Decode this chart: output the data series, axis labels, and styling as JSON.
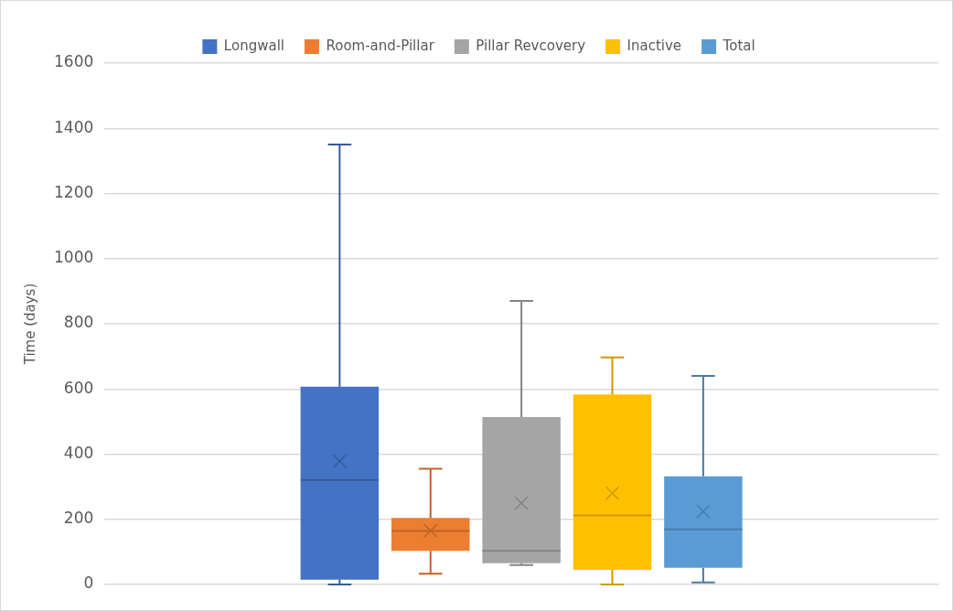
{
  "chart_data": {
    "type": "box",
    "categories": [
      null
    ],
    "ylabel": "Time (days)",
    "ylim": [
      0,
      1600
    ],
    "yticks": [
      0,
      200,
      400,
      600,
      800,
      1000,
      1200,
      1400,
      1600
    ],
    "grid": "y",
    "legend": "top",
    "tick_labels": "y",
    "marker": "cross",
    "series": [
      {
        "name": "Longwall",
        "color": "#4472c4",
        "boxes": [
          {
            "low": 0,
            "q1": 15,
            "median": 321,
            "q3": 607,
            "high": 1350,
            "mean": 378
          }
        ]
      },
      {
        "name": "Room-and-Pillar",
        "color": "#ed7d31",
        "boxes": [
          {
            "low": 33,
            "q1": 103,
            "median": 164,
            "q3": 204,
            "high": 355,
            "mean": 165
          }
        ]
      },
      {
        "name": "Pillar Revcovery",
        "color": "#a5a5a5",
        "boxes": [
          {
            "low": 60,
            "q1": 65,
            "median": 103,
            "q3": 514,
            "high": 870,
            "mean": 250
          }
        ]
      },
      {
        "name": "Inactive",
        "color": "#ffc000",
        "boxes": [
          {
            "low": 0,
            "q1": 45,
            "median": 212,
            "q3": 583,
            "high": 697,
            "mean": 280
          }
        ]
      },
      {
        "name": "Total",
        "color": "#5b9bd5",
        "boxes": [
          {
            "low": 6,
            "q1": 51,
            "median": 169,
            "q3": 332,
            "high": 640,
            "mean": 224
          }
        ]
      }
    ]
  }
}
